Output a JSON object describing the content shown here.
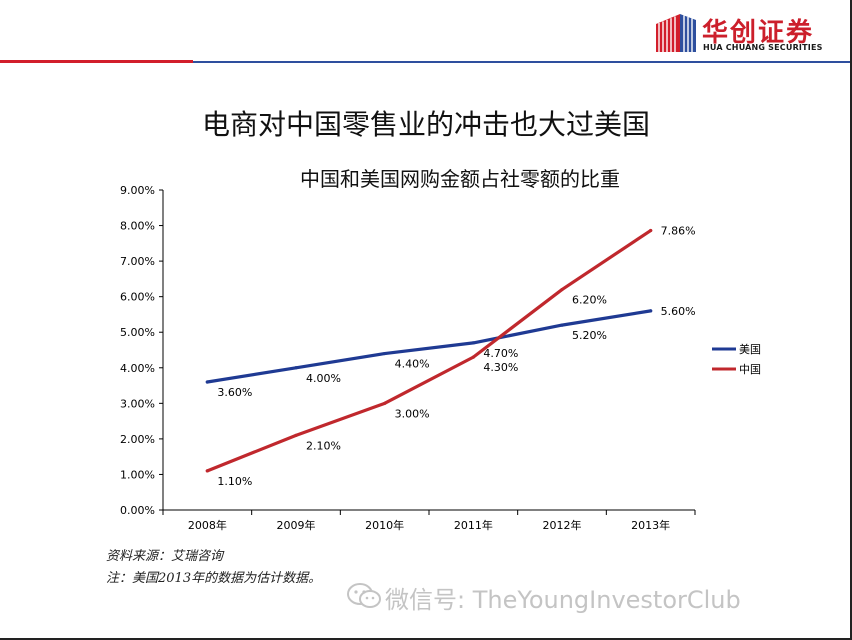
{
  "header": {
    "logo_cn": "华创证券",
    "logo_en": "HUA CHUANG SECURITIES",
    "colors": {
      "red": "#d21e2b",
      "blue": "#2e4f9e"
    }
  },
  "slide_title": "电商对中国零售业的冲击也大过美国",
  "chart_data": {
    "type": "line",
    "title": "中国和美国网购金额占社零额的比重",
    "categories": [
      "2008年",
      "2009年",
      "2010年",
      "2011年",
      "2012年",
      "2013年"
    ],
    "series": [
      {
        "name": "美国",
        "values": [
          3.6,
          4.0,
          4.4,
          4.7,
          5.2,
          5.6
        ],
        "labels": [
          "3.60%",
          "4.00%",
          "4.40%",
          "4.70%",
          "5.20%",
          "5.60%"
        ],
        "color": "#1f3a93"
      },
      {
        "name": "中国",
        "values": [
          1.1,
          2.1,
          3.0,
          4.3,
          6.2,
          7.86
        ],
        "labels": [
          "1.10%",
          "2.10%",
          "3.00%",
          "4.30%",
          "6.20%",
          "7.86%"
        ],
        "color": "#c0282d"
      }
    ],
    "ylim": [
      0,
      9
    ],
    "ytick_step": 1,
    "ytick_labels": [
      "0.00%",
      "1.00%",
      "2.00%",
      "3.00%",
      "4.00%",
      "5.00%",
      "6.00%",
      "7.00%",
      "8.00%",
      "9.00%"
    ],
    "grid": false,
    "legend": "right"
  },
  "footnotes": {
    "source": "资料来源：艾瑞咨询",
    "note": "注：美国2013年的数据为估计数据。"
  },
  "watermark": "微信号: TheYoungInvestorClub"
}
